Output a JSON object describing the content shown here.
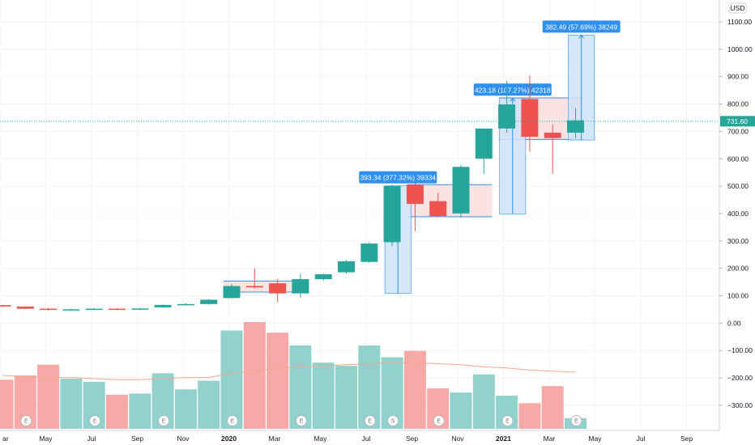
{
  "currency": "USD",
  "last_price_label": "731.60",
  "colors": {
    "up": "#26a69a",
    "down": "#ef5350",
    "up_volume": "#92d2cc",
    "down_volume": "#f7a9a7",
    "measure_fill": "#cfe3f8",
    "measure_stroke": "#2e90f0",
    "range_fill": "#fbdcdc",
    "ma": "#f4a58a",
    "grid": "#f0f3fa"
  },
  "chart_data": {
    "type": "candlestick",
    "price_axis_ticks": [
      "1100.00",
      "1000.00",
      "900.00",
      "800.00",
      "700.00",
      "600.00",
      "500.00",
      "400.00",
      "300.00",
      "200.00",
      "100.00",
      "0.00",
      "−100.00",
      "−200.00",
      "−300.00"
    ],
    "time_axis_labels": [
      {
        "label": "ar",
        "bold": false
      },
      {
        "label": "May",
        "bold": false
      },
      {
        "label": "Jul",
        "bold": false
      },
      {
        "label": "Sep",
        "bold": false
      },
      {
        "label": "Nov",
        "bold": false
      },
      {
        "label": "2020",
        "bold": true
      },
      {
        "label": "Mar",
        "bold": false
      },
      {
        "label": "May",
        "bold": false
      },
      {
        "label": "Jul",
        "bold": false
      },
      {
        "label": "Sep",
        "bold": false
      },
      {
        "label": "Nov",
        "bold": false
      },
      {
        "label": "2021",
        "bold": true
      },
      {
        "label": "Mar",
        "bold": false
      },
      {
        "label": "May",
        "bold": false
      },
      {
        "label": "Jul",
        "bold": false
      },
      {
        "label": "Sep",
        "bold": false
      }
    ],
    "candles": [
      {
        "o": 60,
        "h": 61,
        "l": 54,
        "c": 55
      },
      {
        "o": 55,
        "h": 56,
        "l": 46,
        "c": 47
      },
      {
        "o": 47,
        "h": 49,
        "l": 40,
        "c": 43
      },
      {
        "o": 43,
        "h": 47,
        "l": 40,
        "c": 45
      },
      {
        "o": 45,
        "h": 50,
        "l": 42,
        "c": 47
      },
      {
        "o": 47,
        "h": 49,
        "l": 42,
        "c": 44
      },
      {
        "o": 44,
        "h": 49,
        "l": 42,
        "c": 48
      },
      {
        "o": 52,
        "h": 62,
        "l": 51,
        "c": 61
      },
      {
        "o": 62,
        "h": 67,
        "l": 60,
        "c": 64
      },
      {
        "o": 64,
        "h": 83,
        "l": 62,
        "c": 80
      },
      {
        "o": 86,
        "h": 138,
        "l": 85,
        "c": 130
      },
      {
        "o": 130,
        "h": 195,
        "l": 120,
        "c": 125
      },
      {
        "o": 140,
        "h": 155,
        "l": 70,
        "c": 103
      },
      {
        "o": 103,
        "h": 174,
        "l": 86,
        "c": 155
      },
      {
        "o": 155,
        "h": 175,
        "l": 150,
        "c": 173
      },
      {
        "o": 180,
        "h": 225,
        "l": 175,
        "c": 220
      },
      {
        "o": 218,
        "h": 290,
        "l": 215,
        "c": 285
      },
      {
        "o": 290,
        "h": 500,
        "l": 275,
        "c": 495
      },
      {
        "o": 500,
        "h": 508,
        "l": 330,
        "c": 430
      },
      {
        "o": 440,
        "h": 470,
        "l": 380,
        "c": 385
      },
      {
        "o": 395,
        "h": 572,
        "l": 380,
        "c": 565
      },
      {
        "o": 595,
        "h": 705,
        "l": 540,
        "c": 705
      },
      {
        "o": 705,
        "h": 880,
        "l": 690,
        "c": 793
      },
      {
        "o": 813,
        "h": 900,
        "l": 620,
        "c": 675
      },
      {
        "o": 690,
        "h": 720,
        "l": 540,
        "c": 670
      },
      {
        "o": 690,
        "h": 780,
        "l": 670,
        "c": 735
      }
    ],
    "volume_pct": [
      {
        "v": 0.46,
        "up": false
      },
      {
        "v": 0.5,
        "up": false
      },
      {
        "v": 0.6,
        "up": false
      },
      {
        "v": 0.47,
        "up": true
      },
      {
        "v": 0.44,
        "up": true
      },
      {
        "v": 0.32,
        "up": false
      },
      {
        "v": 0.33,
        "up": true
      },
      {
        "v": 0.52,
        "up": true
      },
      {
        "v": 0.37,
        "up": true
      },
      {
        "v": 0.45,
        "up": true
      },
      {
        "v": 0.92,
        "up": true
      },
      {
        "v": 1.0,
        "up": false
      },
      {
        "v": 0.9,
        "up": false
      },
      {
        "v": 0.78,
        "up": true
      },
      {
        "v": 0.62,
        "up": true
      },
      {
        "v": 0.59,
        "up": true
      },
      {
        "v": 0.78,
        "up": true
      },
      {
        "v": 0.67,
        "up": true
      },
      {
        "v": 0.73,
        "up": false
      },
      {
        "v": 0.38,
        "up": false
      },
      {
        "v": 0.34,
        "up": true
      },
      {
        "v": 0.51,
        "up": true
      },
      {
        "v": 0.31,
        "up": true
      },
      {
        "v": 0.24,
        "up": false
      },
      {
        "v": 0.4,
        "up": false
      },
      {
        "v": 0.1,
        "up": true
      }
    ],
    "ma_line": [
      0.5,
      0.49,
      0.48,
      0.48,
      0.47,
      0.46,
      0.46,
      0.47,
      0.48,
      0.48,
      0.52,
      0.54,
      0.57,
      0.58,
      0.59,
      0.6,
      0.61,
      0.62,
      0.62,
      0.61,
      0.6,
      0.58,
      0.57,
      0.55,
      0.54,
      0.53
    ],
    "earnings_markers": [
      {
        "idx": 1,
        "label": "E"
      },
      {
        "idx": 4,
        "label": "E"
      },
      {
        "idx": 7,
        "label": "E"
      },
      {
        "idx": 10,
        "label": "E"
      },
      {
        "idx": 13,
        "label": "E"
      },
      {
        "idx": 16,
        "label": "E"
      },
      {
        "idx": 17,
        "label": "S"
      },
      {
        "idx": 19,
        "label": "E"
      },
      {
        "idx": 22,
        "label": "E"
      },
      {
        "idx": 25,
        "label": "E"
      }
    ],
    "measurements": [
      {
        "from": {
          "idx": 17,
          "price": 103
        },
        "to": {
          "idx": 18,
          "price": 496
        },
        "label": "393.34 (377.32%) 39334"
      },
      {
        "from": {
          "idx": 22,
          "price": 393
        },
        "to": {
          "idx": 23,
          "price": 816
        },
        "label": "423.18 (107.27%) 42318"
      },
      {
        "from": {
          "idx": 25,
          "price": 663
        },
        "to": {
          "idx": 26,
          "price": 1046
        },
        "label": "382.49 (57.69%) 38249"
      }
    ],
    "ranges": [
      {
        "from": {
          "idx": 10,
          "price": 108
        },
        "to": {
          "idx": 13,
          "price": 148
        }
      },
      {
        "from": {
          "idx": 18,
          "price": 383
        },
        "to": {
          "idx": 21,
          "price": 500
        }
      },
      {
        "from": {
          "idx": 22,
          "price": 665
        },
        "to": {
          "idx": 25,
          "price": 817
        }
      }
    ],
    "last_price": 731.6
  }
}
